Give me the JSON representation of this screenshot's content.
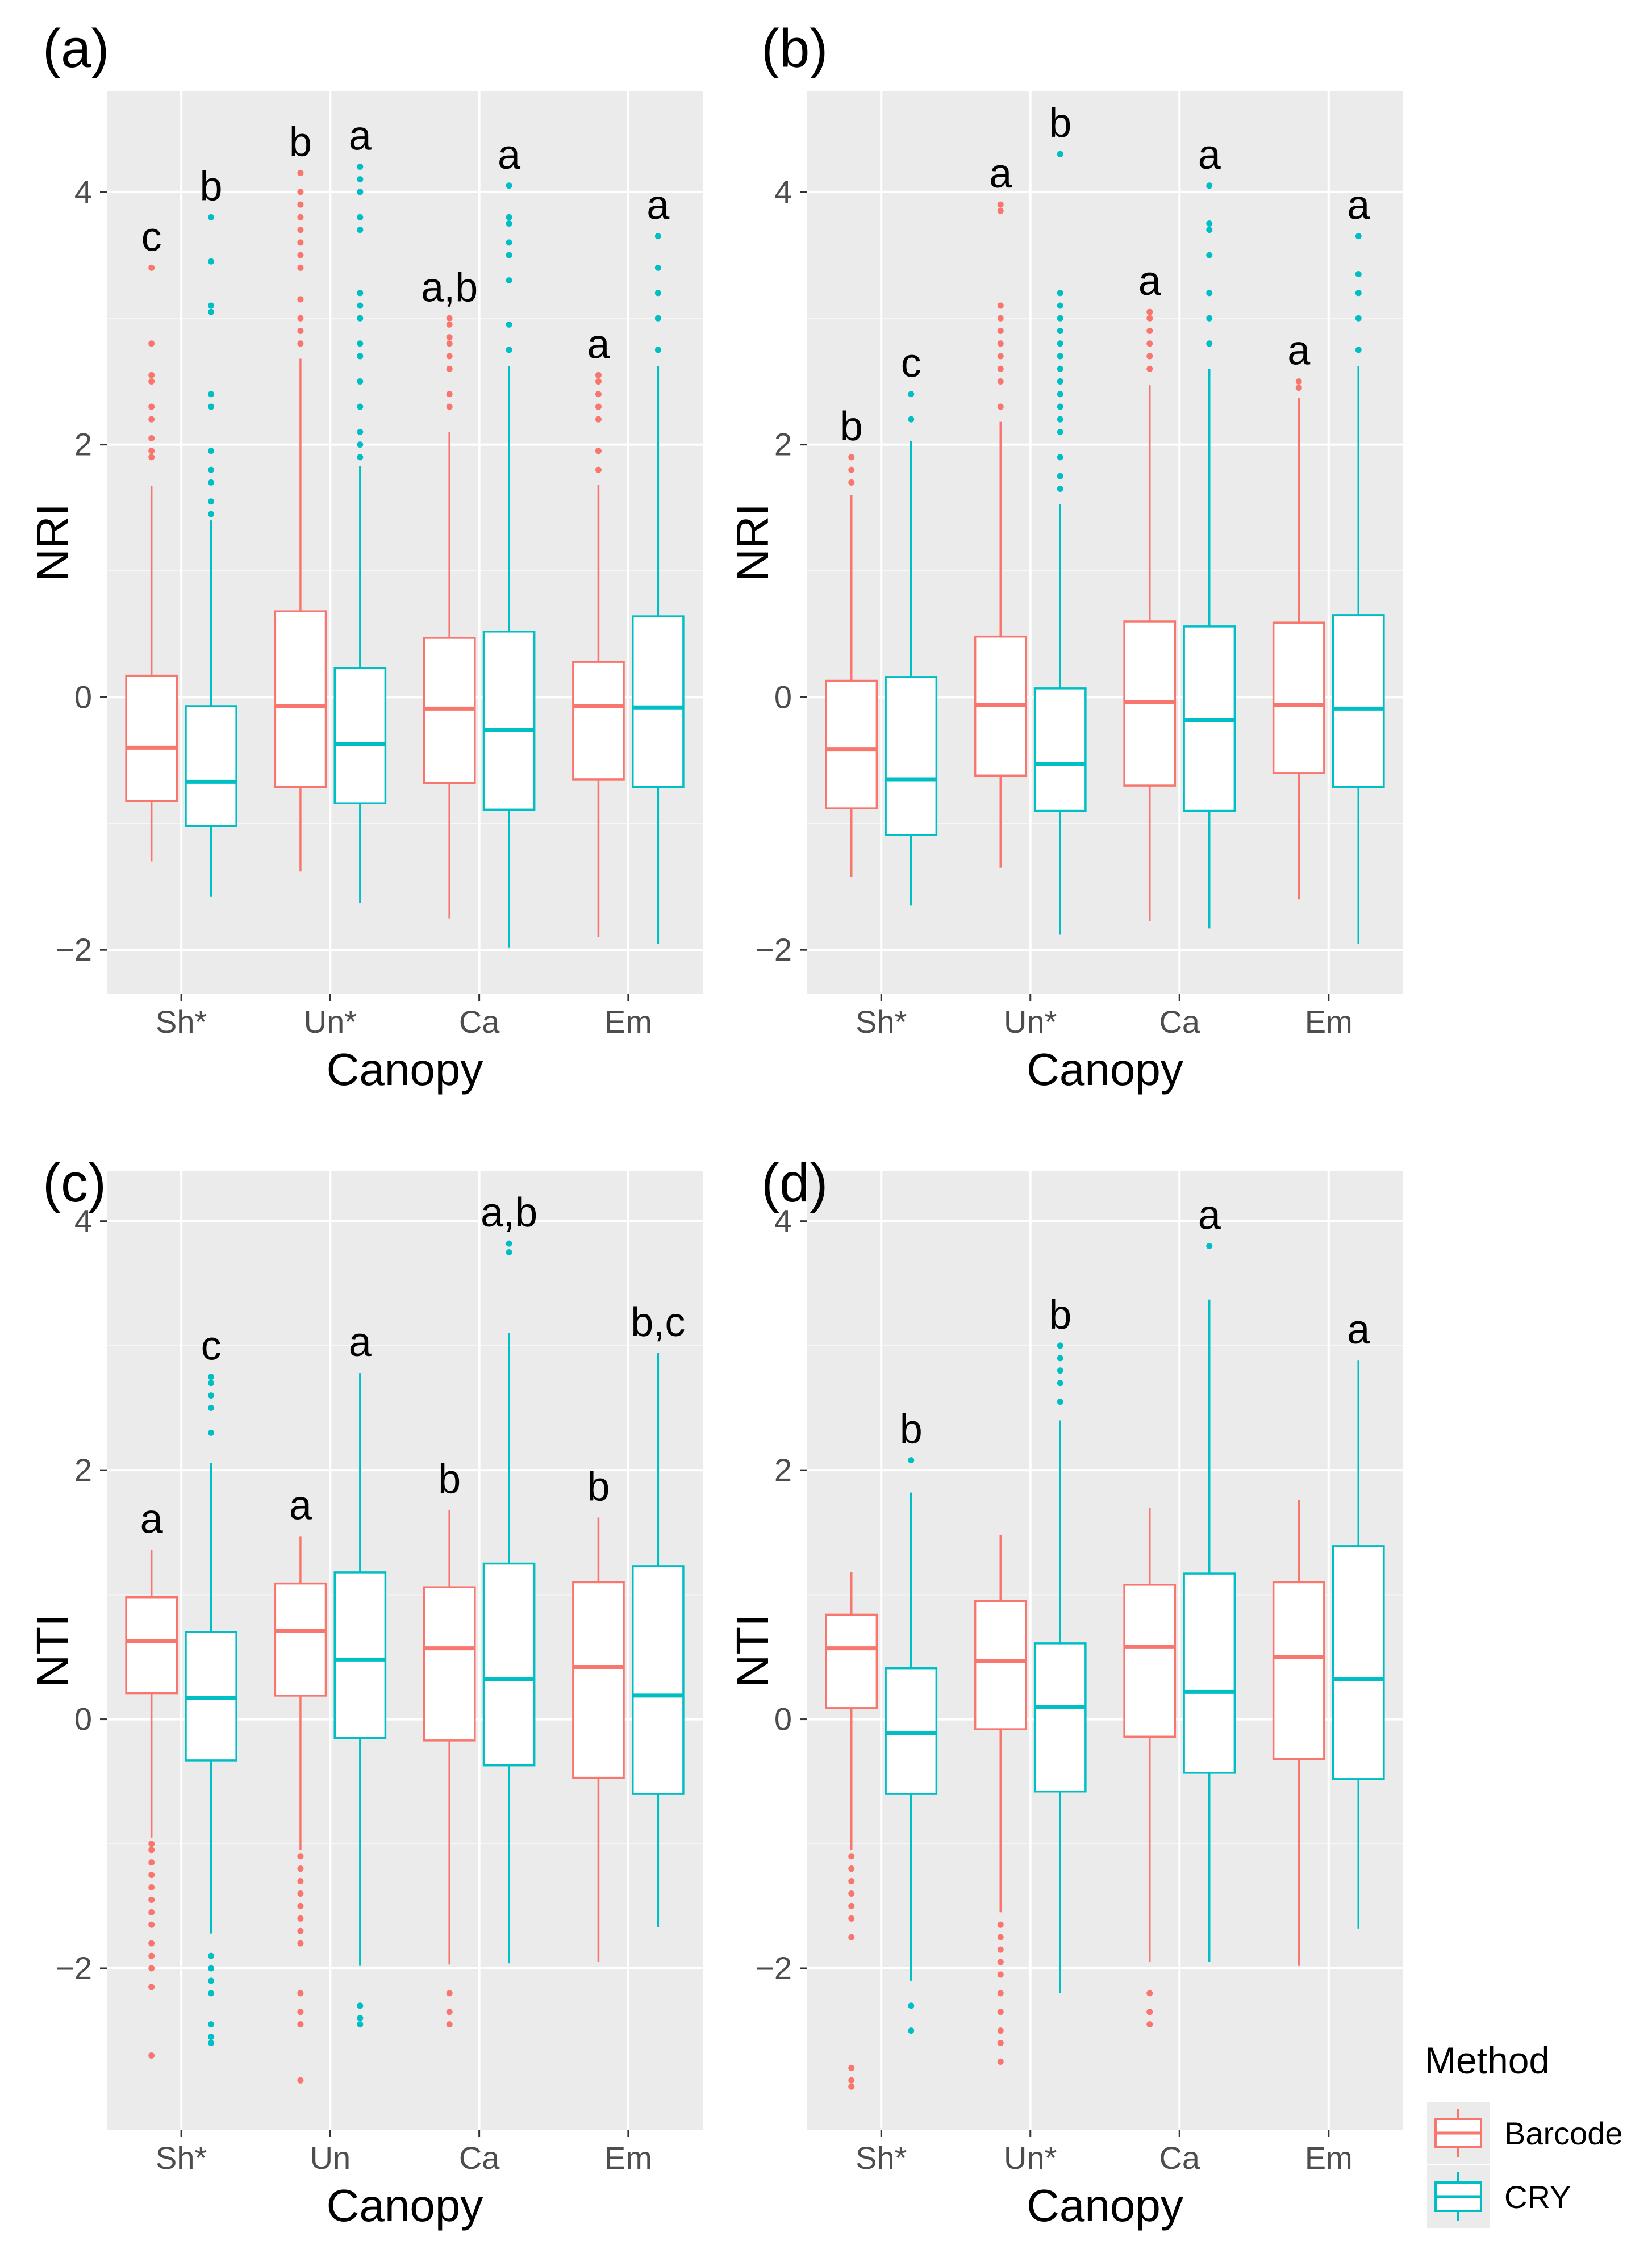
{
  "legend": {
    "title": "Method",
    "items": [
      {
        "label": "Barcode",
        "color": "#F8766D"
      },
      {
        "label": "CRY",
        "color": "#00BFC4"
      }
    ]
  },
  "chart_data": [
    {
      "type": "box",
      "panel_label": "(a)",
      "xlabel": "Canopy",
      "ylabel": "NRI",
      "categories": [
        "Sh*",
        "Un*",
        "Ca",
        "Em"
      ],
      "ylim": [
        -2.35,
        4.8
      ],
      "yticks": [
        -2,
        0,
        2,
        4
      ],
      "grid": true,
      "group_letters": [
        {
          "category": "Sh*",
          "series": "Barcode",
          "text": "c"
        },
        {
          "category": "Sh*",
          "series": "CRY",
          "text": "b"
        },
        {
          "category": "Un*",
          "series": "Barcode",
          "text": "b"
        },
        {
          "category": "Un*",
          "series": "CRY",
          "text": "a"
        },
        {
          "category": "Ca",
          "series": "Barcode",
          "text": "a,b"
        },
        {
          "category": "Ca",
          "series": "CRY",
          "text": "a"
        },
        {
          "category": "Em",
          "series": "Barcode",
          "text": "a"
        },
        {
          "category": "Em",
          "series": "CRY",
          "text": "a"
        }
      ],
      "series": [
        {
          "name": "Barcode",
          "boxes": [
            {
              "category": "Sh*",
              "whisker_low": -1.3,
              "q1": -0.82,
              "median": -0.4,
              "q3": 0.17,
              "whisker_high": 1.67,
              "outliers": [
                1.9,
                1.95,
                2.05,
                2.2,
                2.3,
                2.5,
                2.55,
                2.8,
                3.4
              ]
            },
            {
              "category": "Un*",
              "whisker_low": -1.38,
              "q1": -0.71,
              "median": -0.07,
              "q3": 0.68,
              "whisker_high": 2.68,
              "outliers": [
                2.8,
                2.9,
                3.0,
                3.15,
                3.4,
                3.5,
                3.6,
                3.7,
                3.8,
                3.9,
                4.0,
                4.15
              ]
            },
            {
              "category": "Ca",
              "whisker_low": -1.75,
              "q1": -0.68,
              "median": -0.09,
              "q3": 0.47,
              "whisker_high": 2.1,
              "outliers": [
                2.3,
                2.4,
                2.6,
                2.7,
                2.8,
                2.85,
                2.95,
                3.0
              ]
            },
            {
              "category": "Em",
              "whisker_low": -1.9,
              "q1": -0.65,
              "median": -0.07,
              "q3": 0.28,
              "whisker_high": 1.68,
              "outliers": [
                1.8,
                1.95,
                2.2,
                2.3,
                2.4,
                2.5,
                2.55
              ]
            }
          ]
        },
        {
          "name": "CRY",
          "boxes": [
            {
              "category": "Sh*",
              "whisker_low": -1.58,
              "q1": -1.02,
              "median": -0.67,
              "q3": -0.07,
              "whisker_high": 1.4,
              "outliers": [
                1.45,
                1.55,
                1.7,
                1.8,
                1.95,
                2.3,
                2.4,
                3.05,
                3.1,
                3.45,
                3.8
              ]
            },
            {
              "category": "Un*",
              "whisker_low": -1.63,
              "q1": -0.84,
              "median": -0.37,
              "q3": 0.23,
              "whisker_high": 1.83,
              "outliers": [
                1.9,
                2.0,
                2.1,
                2.3,
                2.5,
                2.7,
                2.8,
                3.0,
                3.1,
                3.2,
                3.7,
                3.8,
                4.0,
                4.1,
                4.2
              ]
            },
            {
              "category": "Ca",
              "whisker_low": -1.98,
              "q1": -0.89,
              "median": -0.26,
              "q3": 0.52,
              "whisker_high": 2.62,
              "outliers": [
                2.75,
                2.95,
                3.3,
                3.5,
                3.6,
                3.75,
                3.8,
                4.05
              ]
            },
            {
              "category": "Em",
              "whisker_low": -1.95,
              "q1": -0.71,
              "median": -0.08,
              "q3": 0.64,
              "whisker_high": 2.62,
              "outliers": [
                2.75,
                3.0,
                3.2,
                3.4,
                3.65
              ]
            }
          ]
        }
      ]
    },
    {
      "type": "box",
      "panel_label": "(b)",
      "xlabel": "Canopy",
      "ylabel": "NRI",
      "categories": [
        "Sh*",
        "Un*",
        "Ca",
        "Em"
      ],
      "ylim": [
        -2.35,
        4.8
      ],
      "yticks": [
        -2,
        0,
        2,
        4
      ],
      "grid": true,
      "group_letters": [
        {
          "category": "Sh*",
          "series": "Barcode",
          "text": "b"
        },
        {
          "category": "Sh*",
          "series": "CRY",
          "text": "c"
        },
        {
          "category": "Un*",
          "series": "Barcode",
          "text": "a"
        },
        {
          "category": "Un*",
          "series": "CRY",
          "text": "b"
        },
        {
          "category": "Ca",
          "series": "Barcode",
          "text": "a"
        },
        {
          "category": "Ca",
          "series": "CRY",
          "text": "a"
        },
        {
          "category": "Em",
          "series": "Barcode",
          "text": "a"
        },
        {
          "category": "Em",
          "series": "CRY",
          "text": "a"
        }
      ],
      "series": [
        {
          "name": "Barcode",
          "boxes": [
            {
              "category": "Sh*",
              "whisker_low": -1.42,
              "q1": -0.88,
              "median": -0.41,
              "q3": 0.13,
              "whisker_high": 1.6,
              "outliers": [
                1.7,
                1.8,
                1.9
              ]
            },
            {
              "category": "Un*",
              "whisker_low": -1.35,
              "q1": -0.62,
              "median": -0.06,
              "q3": 0.48,
              "whisker_high": 2.18,
              "outliers": [
                2.3,
                2.5,
                2.6,
                2.7,
                2.8,
                2.9,
                3.0,
                3.1,
                3.85,
                3.9
              ]
            },
            {
              "category": "Ca",
              "whisker_low": -1.77,
              "q1": -0.7,
              "median": -0.04,
              "q3": 0.6,
              "whisker_high": 2.47,
              "outliers": [
                2.6,
                2.7,
                2.8,
                2.9,
                3.0,
                3.05
              ]
            },
            {
              "category": "Em",
              "whisker_low": -1.6,
              "q1": -0.6,
              "median": -0.06,
              "q3": 0.59,
              "whisker_high": 2.37,
              "outliers": [
                2.45,
                2.5
              ]
            }
          ]
        },
        {
          "name": "CRY",
          "boxes": [
            {
              "category": "Sh*",
              "whisker_low": -1.65,
              "q1": -1.09,
              "median": -0.65,
              "q3": 0.16,
              "whisker_high": 2.03,
              "outliers": [
                2.2,
                2.4
              ]
            },
            {
              "category": "Un*",
              "whisker_low": -1.88,
              "q1": -0.9,
              "median": -0.53,
              "q3": 0.07,
              "whisker_high": 1.53,
              "outliers": [
                1.65,
                1.75,
                1.9,
                2.1,
                2.2,
                2.3,
                2.4,
                2.5,
                2.6,
                2.7,
                2.8,
                2.9,
                3.0,
                3.1,
                3.2,
                4.3
              ]
            },
            {
              "category": "Ca",
              "whisker_low": -1.83,
              "q1": -0.9,
              "median": -0.18,
              "q3": 0.56,
              "whisker_high": 2.6,
              "outliers": [
                2.8,
                3.0,
                3.2,
                3.5,
                3.7,
                3.75,
                4.05
              ]
            },
            {
              "category": "Em",
              "whisker_low": -1.95,
              "q1": -0.71,
              "median": -0.09,
              "q3": 0.65,
              "whisker_high": 2.62,
              "outliers": [
                2.75,
                3.0,
                3.2,
                3.35,
                3.65
              ]
            }
          ]
        }
      ]
    },
    {
      "type": "box",
      "panel_label": "(c)",
      "xlabel": "Canopy",
      "ylabel": "NTI",
      "categories": [
        "Sh*",
        "Un",
        "Ca",
        "Em"
      ],
      "ylim": [
        -3.3,
        4.4
      ],
      "yticks": [
        -2,
        0,
        2,
        4
      ],
      "grid": true,
      "group_letters": [
        {
          "category": "Sh*",
          "series": "Barcode",
          "text": "a"
        },
        {
          "category": "Sh*",
          "series": "CRY",
          "text": "c"
        },
        {
          "category": "Un",
          "series": "Barcode",
          "text": "a"
        },
        {
          "category": "Un",
          "series": "CRY",
          "text": "a"
        },
        {
          "category": "Ca",
          "series": "Barcode",
          "text": "b"
        },
        {
          "category": "Ca",
          "series": "CRY",
          "text": "a,b"
        },
        {
          "category": "Em",
          "series": "Barcode",
          "text": "b"
        },
        {
          "category": "Em",
          "series": "CRY",
          "text": "b,c"
        }
      ],
      "series": [
        {
          "name": "Barcode",
          "boxes": [
            {
              "category": "Sh*",
              "whisker_low": -0.95,
              "q1": 0.21,
              "median": 0.63,
              "q3": 0.98,
              "whisker_high": 1.36,
              "outliers": [
                -1.0,
                -1.05,
                -1.15,
                -1.25,
                -1.35,
                -1.45,
                -1.55,
                -1.65,
                -1.8,
                -1.9,
                -2.0,
                -2.15,
                -2.7
              ]
            },
            {
              "category": "Un",
              "whisker_low": -1.05,
              "q1": 0.19,
              "median": 0.71,
              "q3": 1.09,
              "whisker_high": 1.47,
              "outliers": [
                -1.1,
                -1.2,
                -1.3,
                -1.4,
                -1.5,
                -1.6,
                -1.7,
                -1.8,
                -2.2,
                -2.35,
                -2.45,
                -2.9
              ]
            },
            {
              "category": "Ca",
              "whisker_low": -1.97,
              "q1": -0.17,
              "median": 0.57,
              "q3": 1.06,
              "whisker_high": 1.68,
              "outliers": [
                -2.2,
                -2.35,
                -2.45
              ]
            },
            {
              "category": "Em",
              "whisker_low": -1.95,
              "q1": -0.47,
              "median": 0.42,
              "q3": 1.1,
              "whisker_high": 1.62,
              "outliers": []
            }
          ]
        },
        {
          "name": "CRY",
          "boxes": [
            {
              "category": "Sh*",
              "whisker_low": -1.72,
              "q1": -0.33,
              "median": 0.17,
              "q3": 0.7,
              "whisker_high": 2.06,
              "outliers": [
                -1.9,
                -2.0,
                -2.1,
                -2.2,
                -2.45,
                -2.55,
                -2.6,
                2.3,
                2.5,
                2.6,
                2.7,
                2.75
              ]
            },
            {
              "category": "Un",
              "whisker_low": -1.98,
              "q1": -0.15,
              "median": 0.48,
              "q3": 1.18,
              "whisker_high": 2.78,
              "outliers": [
                -2.3,
                -2.4,
                -2.45
              ]
            },
            {
              "category": "Ca",
              "whisker_low": -1.96,
              "q1": -0.37,
              "median": 0.32,
              "q3": 1.25,
              "whisker_high": 3.1,
              "outliers": [
                3.75,
                3.82
              ]
            },
            {
              "category": "Em",
              "whisker_low": -1.67,
              "q1": -0.6,
              "median": 0.19,
              "q3": 1.23,
              "whisker_high": 2.94,
              "outliers": []
            }
          ]
        }
      ]
    },
    {
      "type": "box",
      "panel_label": "(d)",
      "xlabel": "Canopy",
      "ylabel": "NTI",
      "categories": [
        "Sh*",
        "Un*",
        "Ca",
        "Em"
      ],
      "ylim": [
        -3.3,
        4.4
      ],
      "yticks": [
        -2,
        0,
        2,
        4
      ],
      "grid": true,
      "group_letters": [
        {
          "category": "Sh*",
          "series": "CRY",
          "text": "b"
        },
        {
          "category": "Un*",
          "series": "CRY",
          "text": "b"
        },
        {
          "category": "Ca",
          "series": "CRY",
          "text": "a"
        },
        {
          "category": "Em",
          "series": "CRY",
          "text": "a"
        }
      ],
      "series": [
        {
          "name": "Barcode",
          "boxes": [
            {
              "category": "Sh*",
              "whisker_low": -1.05,
              "q1": 0.09,
              "median": 0.57,
              "q3": 0.84,
              "whisker_high": 1.18,
              "outliers": [
                -1.1,
                -1.2,
                -1.3,
                -1.4,
                -1.5,
                -1.6,
                -1.75,
                -2.8,
                -2.9,
                -2.95
              ]
            },
            {
              "category": "Un*",
              "whisker_low": -1.55,
              "q1": -0.08,
              "median": 0.47,
              "q3": 0.95,
              "whisker_high": 1.48,
              "outliers": [
                -1.65,
                -1.75,
                -1.85,
                -1.95,
                -2.05,
                -2.2,
                -2.35,
                -2.5,
                -2.6,
                -2.75
              ]
            },
            {
              "category": "Ca",
              "whisker_low": -1.95,
              "q1": -0.14,
              "median": 0.58,
              "q3": 1.08,
              "whisker_high": 1.7,
              "outliers": [
                -2.2,
                -2.35,
                -2.45
              ]
            },
            {
              "category": "Em",
              "whisker_low": -1.98,
              "q1": -0.32,
              "median": 0.5,
              "q3": 1.1,
              "whisker_high": 1.76,
              "outliers": []
            }
          ]
        },
        {
          "name": "CRY",
          "boxes": [
            {
              "category": "Sh*",
              "whisker_low": -2.1,
              "q1": -0.6,
              "median": -0.11,
              "q3": 0.41,
              "whisker_high": 1.82,
              "outliers": [
                -2.3,
                -2.5,
                2.08
              ]
            },
            {
              "category": "Un*",
              "whisker_low": -2.2,
              "q1": -0.58,
              "median": 0.1,
              "q3": 0.61,
              "whisker_high": 2.4,
              "outliers": [
                2.55,
                2.7,
                2.8,
                2.9,
                3.0
              ]
            },
            {
              "category": "Ca",
              "whisker_low": -1.95,
              "q1": -0.43,
              "median": 0.22,
              "q3": 1.17,
              "whisker_high": 3.37,
              "outliers": [
                3.8
              ]
            },
            {
              "category": "Em",
              "whisker_low": -1.68,
              "q1": -0.48,
              "median": 0.32,
              "q3": 1.39,
              "whisker_high": 2.88,
              "outliers": []
            }
          ]
        }
      ]
    }
  ]
}
